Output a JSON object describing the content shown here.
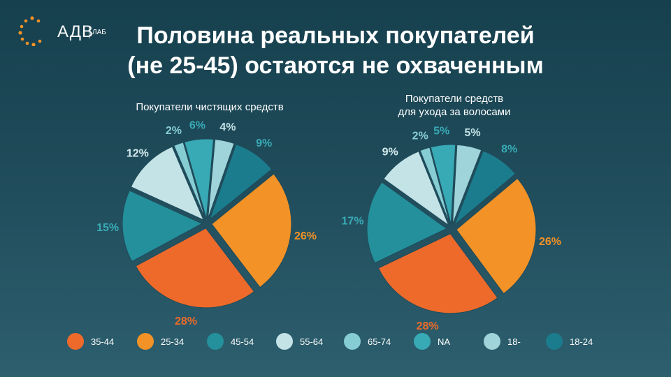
{
  "logo": {
    "text": "АДВ",
    "sub": "ЛАБ"
  },
  "title_lines": [
    "Половина реальных покупателей",
    "(не 25-45) остаются не охваченным"
  ],
  "colors": {
    "35-44": "#ee6a2a",
    "25-34": "#f39226",
    "45-54": "#24909b",
    "55-64": "#c4e3e7",
    "65-74": "#86cdd3",
    "NA": "#38aab5",
    "18-": "#9fd4da",
    "18-24": "#1b7c8d"
  },
  "legend": [
    {
      "label": "35-44",
      "color": "#ee6a2a"
    },
    {
      "label": "25-34",
      "color": "#f39226"
    },
    {
      "label": "45-54",
      "color": "#24909b"
    },
    {
      "label": "55-64",
      "color": "#c4e3e7"
    },
    {
      "label": "65-74",
      "color": "#86cdd3"
    },
    {
      "label": "NA",
      "color": "#38aab5"
    },
    {
      "label": "18-",
      "color": "#9fd4da"
    },
    {
      "label": "18-24",
      "color": "#1b7c8d"
    }
  ],
  "chart_data": [
    {
      "type": "pie",
      "title_lines": [
        "Покупатели чистящих средств"
      ],
      "slices": [
        {
          "category": "25-34",
          "value": 26,
          "label": "26%"
        },
        {
          "category": "35-44",
          "value": 28,
          "label": "28%"
        },
        {
          "category": "45-54",
          "value": 15,
          "label": "15%"
        },
        {
          "category": "55-64",
          "value": 12,
          "label": "12%"
        },
        {
          "category": "65-74",
          "value": 2,
          "label": "2%"
        },
        {
          "category": "NA",
          "value": 6,
          "label": "6%"
        },
        {
          "category": "18-",
          "value": 4,
          "label": "4%"
        },
        {
          "category": "18-24",
          "value": 9,
          "label": "9%"
        }
      ]
    },
    {
      "type": "pie",
      "title_lines": [
        "Покупатели средств",
        "для ухода за волосами"
      ],
      "slices": [
        {
          "category": "25-34",
          "value": 26,
          "label": "26%"
        },
        {
          "category": "35-44",
          "value": 28,
          "label": "28%"
        },
        {
          "category": "45-54",
          "value": 17,
          "label": "17%"
        },
        {
          "category": "55-64",
          "value": 9,
          "label": "9%"
        },
        {
          "category": "65-74",
          "value": 2,
          "label": "2%"
        },
        {
          "category": "NA",
          "value": 5,
          "label": "5%"
        },
        {
          "category": "18-",
          "value": 5,
          "label": "5%"
        },
        {
          "category": "18-24",
          "value": 8,
          "label": "8%"
        }
      ]
    }
  ]
}
